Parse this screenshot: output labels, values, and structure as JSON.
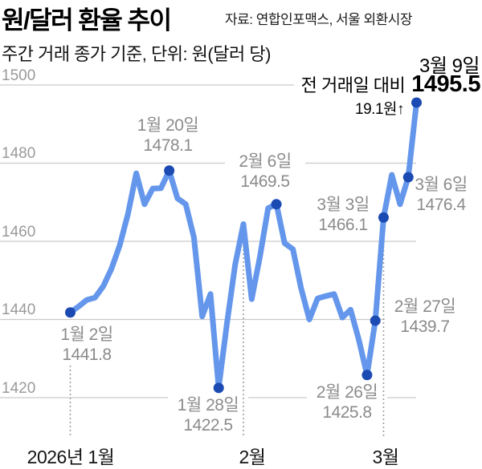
{
  "header": {
    "title": "원/달러 환율 추이",
    "source": "자료: 연합인포맥스, 서울 외환시장",
    "subtitle": "주간 거래 종가 기준, 단위: 원(달러 당)"
  },
  "callout": {
    "date": "3월 9일",
    "compare_label": "전 거래일 대비",
    "value": "1495.5",
    "change": "19.1원↑"
  },
  "chart_data": {
    "type": "line",
    "title": "원/달러 환율 추이",
    "xlabel": "",
    "ylabel": "원(달러 당)",
    "ylim": [
      1415,
      1502
    ],
    "y_ticks": [
      1500,
      1480,
      1460,
      1440,
      1420
    ],
    "grid": true,
    "legend_position": "none",
    "series": [
      {
        "name": "원/달러 환율 (주간 거래 종가)",
        "values": [
          1441.8,
          1443.3,
          1445.0,
          1445.6,
          1448.5,
          1453.0,
          1459.0,
          1467.0,
          1477.4,
          1469.5,
          1473.5,
          1473.6,
          1478.1,
          1471.0,
          1469.5,
          1461.0,
          1440.8,
          1446.5,
          1422.5,
          1439.0,
          1454.0,
          1464.4,
          1445.2,
          1456.0,
          1468.5,
          1469.5,
          1459.5,
          1458.0,
          1448.0,
          1440.0,
          1445.4,
          1446.0,
          1446.5,
          1440.5,
          1442.5,
          1434.8,
          1425.8,
          1439.7,
          1466.1,
          1477.0,
          1469.5,
          1476.4,
          1495.5
        ]
      }
    ],
    "months": [
      {
        "label": "2026년 1월",
        "start_index": 0
      },
      {
        "label": "2월",
        "start_index": 21
      },
      {
        "label": "3월",
        "start_index": 38
      }
    ],
    "annotations": [
      {
        "date": "1월 2일",
        "value": 1441.8,
        "point_index": 0
      },
      {
        "date": "1월 20일",
        "value": 1478.1,
        "point_index": 12
      },
      {
        "date": "1월 28일",
        "value": 1422.5,
        "point_index": 18
      },
      {
        "date": "2월 6일",
        "value": 1469.5,
        "point_index": 25
      },
      {
        "date": "2월 26일",
        "value": 1425.8,
        "point_index": 36
      },
      {
        "date": "2월 27일",
        "value": 1439.7,
        "point_index": 37
      },
      {
        "date": "3월 3일",
        "value": 1466.1,
        "point_index": 38
      },
      {
        "date": "3월 6일",
        "value": 1476.4,
        "point_index": 41
      },
      {
        "date": "3월 9일",
        "value": 1495.5,
        "point_index": 42
      }
    ],
    "colors": {
      "line": "#6496EB",
      "dot": "#1A4AB2",
      "grid": "#C9C9C9",
      "month_divider": "#A0A0A0",
      "annotation_text": "#8B8B8B"
    }
  }
}
